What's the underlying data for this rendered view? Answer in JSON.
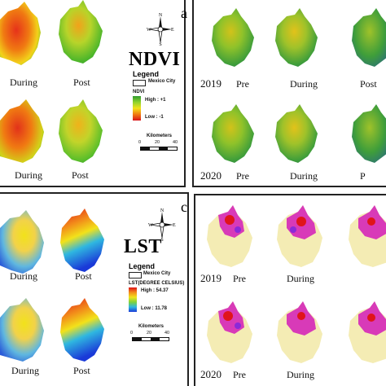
{
  "panel_a": {
    "letter": "a",
    "title": "NDVI",
    "col_labels": [
      "During",
      "Post"
    ],
    "legend": {
      "heading": "Legend",
      "boundary": "Mexico City",
      "layer": "NDVI",
      "high": "High : +1",
      "low": "Low : -1",
      "colors": [
        "#2e9b2e",
        "#8fd22e",
        "#f2e21a",
        "#f07a12",
        "#d8141a"
      ]
    },
    "scale": {
      "unit": "Kilometers",
      "ticks": [
        "0",
        "20",
        "40"
      ]
    }
  },
  "panel_b": {
    "years": [
      "2019",
      "2020"
    ],
    "col_labels": [
      "Pre",
      "During",
      "Post"
    ],
    "col_label_edge": "P"
  },
  "panel_c": {
    "letter": "c",
    "title": "LST",
    "col_labels": [
      "During",
      "Post"
    ],
    "legend": {
      "heading": "Legend",
      "boundary": "Mexico City",
      "layer": "LST(DEGREE CELSIUS)",
      "high": "High : 54.37",
      "low": "Low : 11.78",
      "colors": [
        "#e0141a",
        "#f28c1a",
        "#f2e21a",
        "#7fd23c",
        "#2fb7e0",
        "#1a3ad8"
      ]
    },
    "scale": {
      "unit": "Kilometers",
      "ticks": [
        "0",
        "20",
        "40"
      ]
    }
  },
  "panel_d": {
    "years": [
      "2019",
      "2020"
    ],
    "col_labels": [
      "Pre",
      "During"
    ]
  },
  "compass": {
    "n": "N",
    "s": "S",
    "e": "E",
    "w": "W"
  }
}
